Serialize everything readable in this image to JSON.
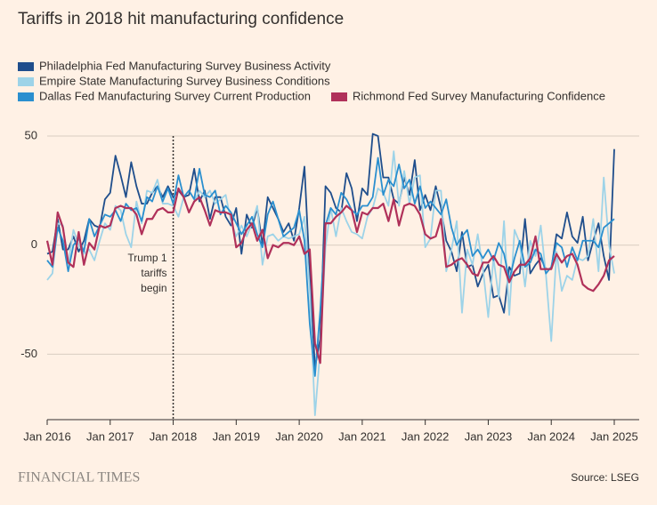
{
  "chart_data": {
    "type": "line",
    "title": "Tariffs in 2018 hit manufacturing confidence",
    "source": "Source: LSEG",
    "brand": "FINANCIAL TIMES",
    "annotation": {
      "x": "2018-01",
      "text": [
        "Trump 1",
        "tariffs",
        "begin"
      ]
    },
    "x": [
      "2016-01",
      "2016-02",
      "2016-03",
      "2016-04",
      "2016-05",
      "2016-06",
      "2016-07",
      "2016-08",
      "2016-09",
      "2016-10",
      "2016-11",
      "2016-12",
      "2017-01",
      "2017-02",
      "2017-03",
      "2017-04",
      "2017-05",
      "2017-06",
      "2017-07",
      "2017-08",
      "2017-09",
      "2017-10",
      "2017-11",
      "2017-12",
      "2018-01",
      "2018-02",
      "2018-03",
      "2018-04",
      "2018-05",
      "2018-06",
      "2018-07",
      "2018-08",
      "2018-09",
      "2018-10",
      "2018-11",
      "2018-12",
      "2019-01",
      "2019-02",
      "2019-03",
      "2019-04",
      "2019-05",
      "2019-06",
      "2019-07",
      "2019-08",
      "2019-09",
      "2019-10",
      "2019-11",
      "2019-12",
      "2020-01",
      "2020-02",
      "2020-03",
      "2020-04",
      "2020-05",
      "2020-06",
      "2020-07",
      "2020-08",
      "2020-09",
      "2020-10",
      "2020-11",
      "2020-12",
      "2021-01",
      "2021-02",
      "2021-03",
      "2021-04",
      "2021-05",
      "2021-06",
      "2021-07",
      "2021-08",
      "2021-09",
      "2021-10",
      "2021-11",
      "2021-12",
      "2022-01",
      "2022-02",
      "2022-03",
      "2022-04",
      "2022-05",
      "2022-06",
      "2022-07",
      "2022-08",
      "2022-09",
      "2022-10",
      "2022-11",
      "2022-12",
      "2023-01",
      "2023-02",
      "2023-03",
      "2023-04",
      "2023-05",
      "2023-06",
      "2023-07",
      "2023-08",
      "2023-09",
      "2023-10",
      "2023-11",
      "2023-12",
      "2024-01",
      "2024-02",
      "2024-03",
      "2024-04",
      "2024-05",
      "2024-06",
      "2024-07",
      "2024-08",
      "2024-09",
      "2024-10",
      "2024-11",
      "2024-12",
      "2025-01"
    ],
    "series": [
      {
        "name": "Philadelphia Fed Manufacturing Survey Business Activity",
        "color": "#1f4e8c",
        "values": [
          -4,
          -3,
          12,
          -2,
          -2,
          4,
          -3,
          2,
          12,
          9,
          8,
          21,
          24,
          41,
          32,
          22,
          38,
          27,
          19,
          19,
          24,
          27,
          22,
          27,
          22,
          25,
          22,
          23,
          35,
          20,
          25,
          12,
          22,
          22,
          13,
          9,
          17,
          -4,
          14,
          8,
          17,
          0,
          22,
          17,
          12,
          6,
          10,
          2,
          17,
          36,
          -13,
          -56,
          -43,
          27,
          24,
          17,
          15,
          33,
          26,
          11,
          26,
          23,
          51,
          50,
          31,
          31,
          21,
          19,
          31,
          23,
          39,
          16,
          23,
          16,
          27,
          17,
          2,
          -3,
          -12,
          6,
          -10,
          -9,
          -19,
          -13,
          -9,
          -24,
          -23,
          -31,
          -10,
          -14,
          -13,
          12,
          -13,
          -9,
          -6,
          -11,
          -11,
          5,
          3,
          15,
          4,
          1,
          13,
          -7,
          2,
          10,
          -5,
          -16,
          44
        ]
      },
      {
        "name": "Empire State Manufacturing Survey Business Conditions",
        "color": "#9dd3e8",
        "values": [
          -16,
          -13,
          10,
          9,
          -9,
          7,
          0,
          -4,
          -2,
          -7,
          2,
          10,
          7,
          18,
          16,
          5,
          -1,
          20,
          10,
          25,
          24,
          30,
          19,
          19,
          18,
          13,
          22,
          15,
          20,
          25,
          22,
          25,
          19,
          21,
          23,
          11,
          4,
          9,
          4,
          10,
          18,
          -9,
          4,
          5,
          2,
          4,
          3,
          4,
          5,
          13,
          -21,
          -78,
          -48,
          -1,
          17,
          4,
          17,
          11,
          6,
          5,
          3,
          13,
          17,
          26,
          24,
          18,
          43,
          18,
          34,
          19,
          31,
          32,
          -1,
          3,
          25,
          25,
          -12,
          -2,
          11,
          -31,
          -2,
          -9,
          5,
          -11,
          -33,
          -6,
          -24,
          11,
          -32,
          7,
          1,
          -19,
          2,
          -5,
          9,
          -14,
          -44,
          -3,
          -21,
          -14,
          -16,
          -6,
          -7,
          -5,
          12,
          -12,
          31,
          0,
          -13
        ]
      },
      {
        "name": "Dallas Fed Manufacturing Survey Current Production",
        "color": "#2a8fcf",
        "values": [
          -7,
          -10,
          8,
          2,
          -12,
          0,
          3,
          -3,
          12,
          4,
          9,
          14,
          13,
          16,
          11,
          19,
          16,
          17,
          11,
          22,
          20,
          27,
          20,
          26,
          19,
          32,
          22,
          25,
          21,
          35,
          23,
          22,
          25,
          14,
          18,
          15,
          10,
          5,
          9,
          13,
          5,
          -1,
          14,
          20,
          12,
          4,
          6,
          8,
          16,
          2,
          -36,
          -60,
          -30,
          9,
          17,
          14,
          24,
          21,
          16,
          14,
          18,
          18,
          22,
          40,
          23,
          30,
          27,
          37,
          26,
          30,
          19,
          27,
          17,
          20,
          17,
          14,
          21,
          8,
          0,
          4,
          7,
          -5,
          -2,
          -6,
          -2,
          -7,
          1,
          -4,
          -16,
          -6,
          2,
          -10,
          -8,
          -2,
          -4,
          -13,
          -10,
          1,
          -1,
          -10,
          -1,
          -7,
          2,
          2,
          2,
          -1,
          8,
          10,
          12
        ]
      },
      {
        "name": "Richmond Fed Survey Manufacturing Confidence",
        "color": "#b0315a",
        "values": [
          2,
          -9,
          15,
          8,
          -8,
          -10,
          6,
          -9,
          1,
          -2,
          9,
          8,
          9,
          17,
          18,
          17,
          17,
          14,
          5,
          12,
          12,
          16,
          17,
          15,
          15,
          26,
          22,
          15,
          20,
          22,
          16,
          9,
          16,
          15,
          15,
          14,
          -1,
          1,
          7,
          10,
          2,
          7,
          -6,
          0,
          -1,
          1,
          1,
          0,
          4,
          -4,
          -2,
          -45,
          -54,
          10,
          10,
          13,
          15,
          18,
          16,
          6,
          15,
          14,
          17,
          17,
          19,
          11,
          21,
          9,
          18,
          19,
          18,
          14,
          5,
          3,
          4,
          12,
          -10,
          -9,
          -7,
          -6,
          -9,
          -13,
          -14,
          -8,
          -8,
          -5,
          -9,
          -10,
          -17,
          -12,
          -9,
          -9,
          -6,
          4,
          -11,
          -11,
          -11,
          -4,
          -8,
          -5,
          -4,
          -9,
          -18,
          -20,
          -21,
          -18,
          -14,
          -7,
          -5
        ]
      }
    ],
    "xlim": [
      "2016-01",
      "2025-01"
    ],
    "xticks": [
      {
        "value": "2016-01",
        "label": "Jan 2016"
      },
      {
        "value": "2017-01",
        "label": "Jan 2017"
      },
      {
        "value": "2018-01",
        "label": "Jan 2018"
      },
      {
        "value": "2019-01",
        "label": "Jan 2019"
      },
      {
        "value": "2020-01",
        "label": "Jan 2020"
      },
      {
        "value": "2021-01",
        "label": "Jan 2021"
      },
      {
        "value": "2022-01",
        "label": "Jan 2022"
      },
      {
        "value": "2023-01",
        "label": "Jan 2023"
      },
      {
        "value": "2024-01",
        "label": "Jan 2024"
      },
      {
        "value": "2025-01",
        "label": "Jan 2025"
      }
    ],
    "ylim": [
      -80,
      50
    ],
    "yticks": [
      -50,
      0,
      50
    ],
    "grid": true
  }
}
